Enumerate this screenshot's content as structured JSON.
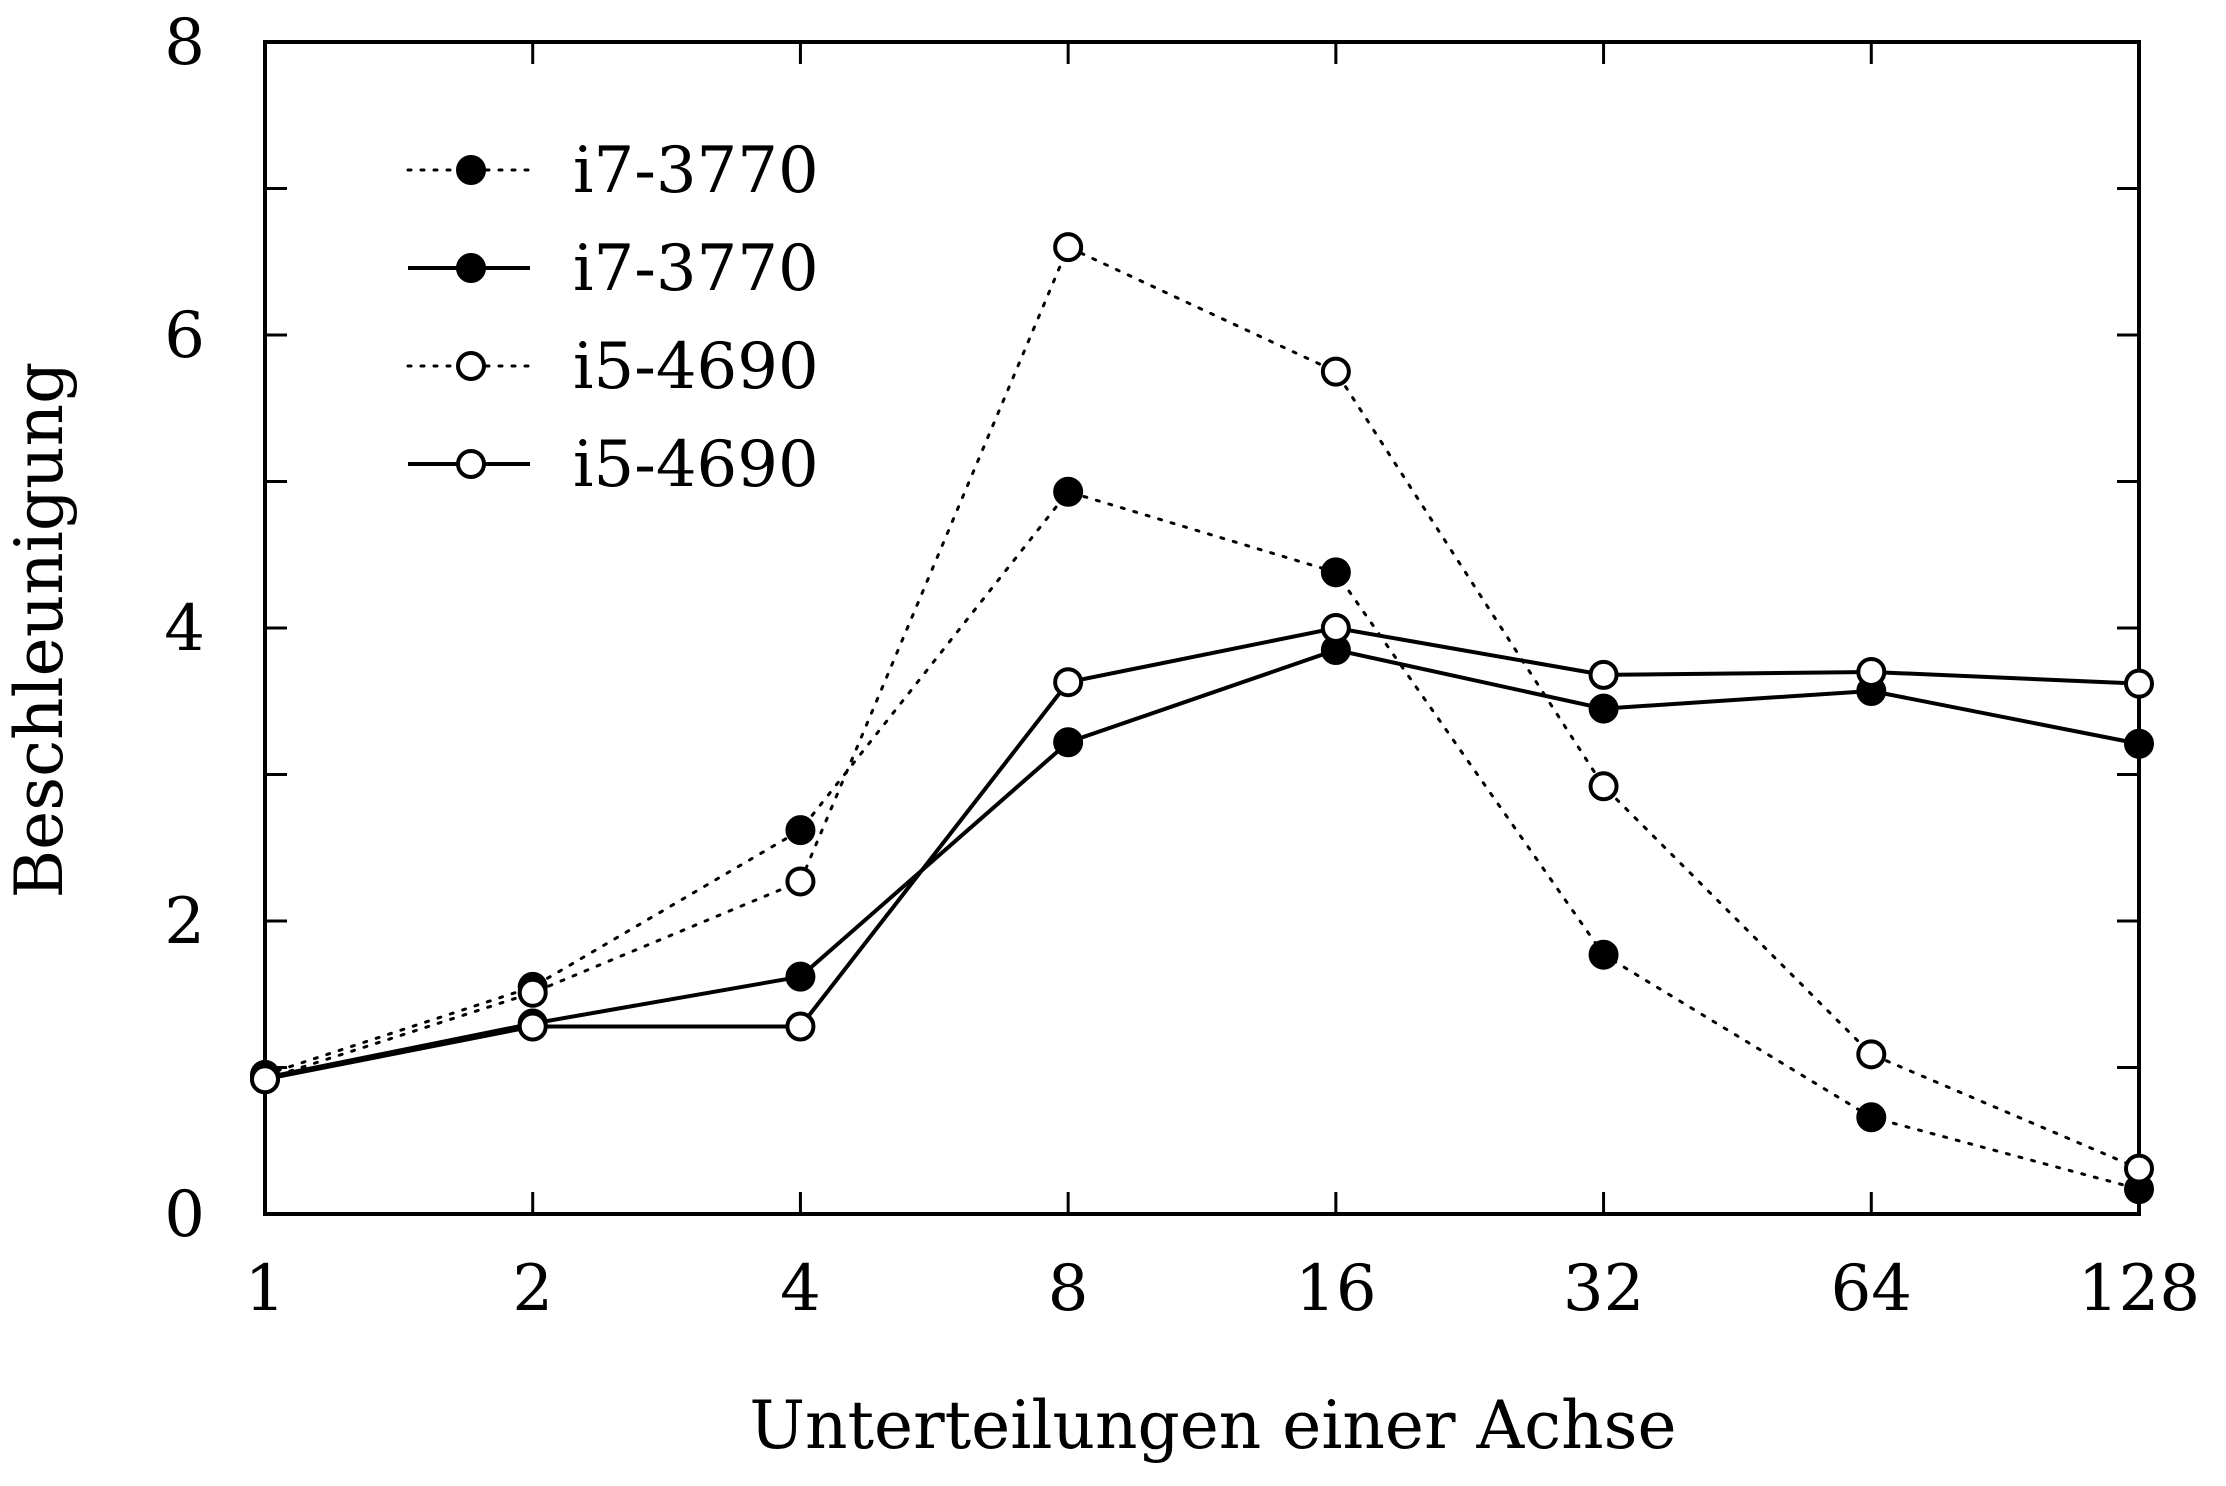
{
  "chart_data": {
    "type": "line",
    "xlabel": "Unterteilungen einer Achse",
    "ylabel": "Beschleunigung",
    "x": [
      1,
      2,
      4,
      8,
      16,
      32,
      64,
      128
    ],
    "x_tick_labels": [
      "1",
      "2",
      "4",
      "8",
      "16",
      "32",
      "64",
      "128"
    ],
    "x_scale": "log2",
    "y_ticks": [
      0,
      2,
      4,
      6,
      8
    ],
    "y_tick_labels": [
      "0",
      "2",
      "4",
      "6",
      "8"
    ],
    "ylim": [
      0,
      8
    ],
    "grid": false,
    "legend_position": "top-left",
    "series": [
      {
        "name": "i7-3770",
        "line_style": "dotted",
        "marker": "filled-circle",
        "values": [
          0.95,
          1.55,
          2.62,
          4.93,
          4.38,
          1.77,
          0.66,
          0.17
        ]
      },
      {
        "name": "i7-3770",
        "line_style": "solid",
        "marker": "filled-circle",
        "values": [
          0.93,
          1.3,
          1.62,
          3.22,
          3.85,
          3.45,
          3.57,
          3.21
        ]
      },
      {
        "name": "i5-4690",
        "line_style": "dotted",
        "marker": "open-circle",
        "values": [
          0.92,
          1.51,
          2.27,
          6.6,
          5.75,
          2.92,
          1.09,
          0.31
        ]
      },
      {
        "name": "i5-4690",
        "line_style": "solid",
        "marker": "open-circle",
        "values": [
          0.92,
          1.28,
          1.28,
          3.63,
          4.0,
          3.68,
          3.7,
          3.62
        ]
      }
    ],
    "colors": {
      "line": "#000000",
      "marker_fill_open": "#ffffff",
      "marker_fill_filled": "#000000"
    }
  }
}
